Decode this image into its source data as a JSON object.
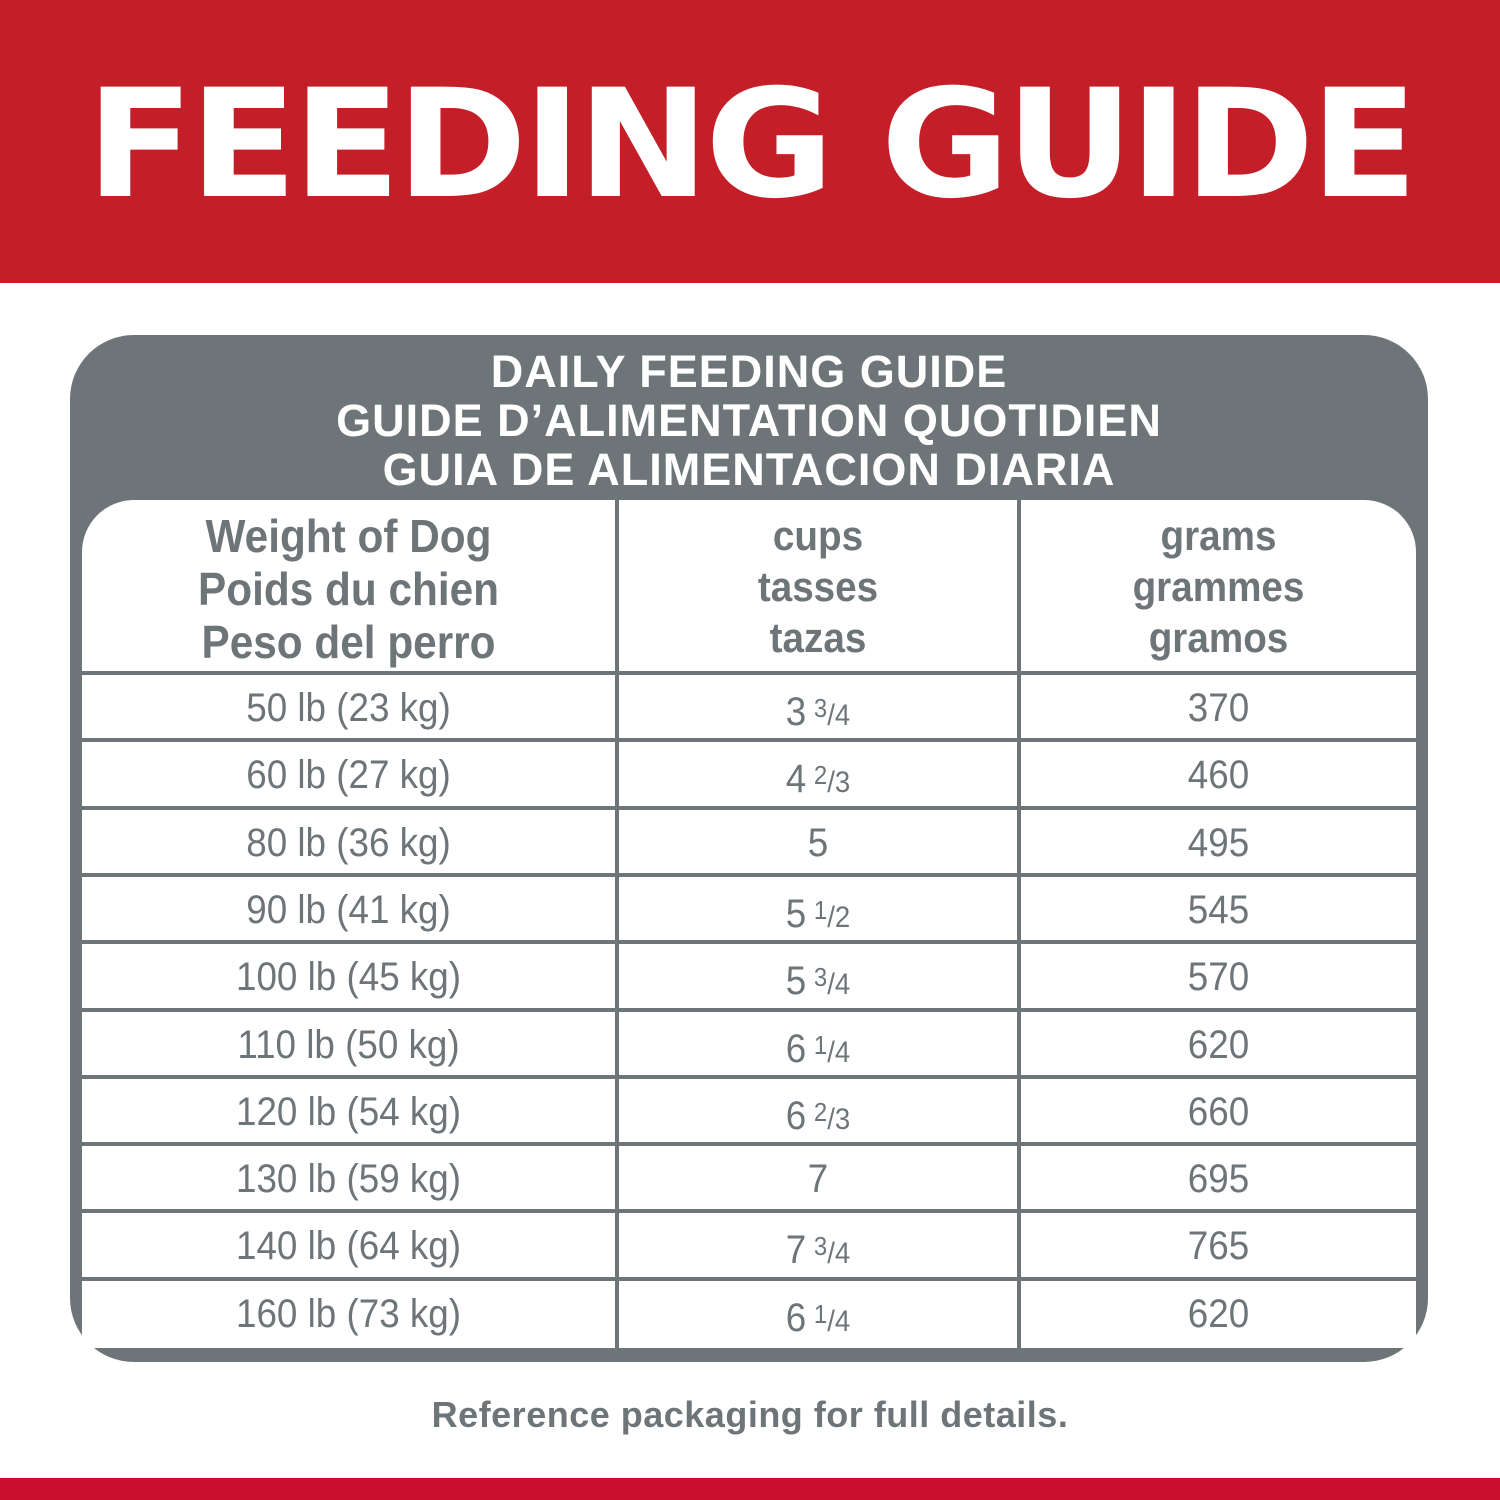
{
  "banner": {
    "title": "FEEDING GUIDE",
    "color": "#c41f28"
  },
  "panel": {
    "title_lines": [
      "DAILY FEEDING GUIDE",
      "GUIDE D’ALIMENTATION QUOTIDIEN",
      "GUIA DE ALIMENTACION DIARIA"
    ],
    "color": "#6e7579"
  },
  "table": {
    "headers": [
      [
        "Weight of Dog",
        "Poids du chien",
        "Peso del perro"
      ],
      [
        "cups",
        "tasses",
        "tazas"
      ],
      [
        "grams",
        "grammes",
        "gramos"
      ]
    ],
    "rows": [
      {
        "weight": "50 lb (23 kg)",
        "cups_whole": "3",
        "cups_num": "3",
        "cups_den": "4",
        "grams": "370"
      },
      {
        "weight": "60 lb (27 kg)",
        "cups_whole": "4",
        "cups_num": "2",
        "cups_den": "3",
        "grams": "460"
      },
      {
        "weight": "80 lb (36 kg)",
        "cups_whole": "5",
        "cups_num": "",
        "cups_den": "",
        "grams": "495"
      },
      {
        "weight": "90 lb (41 kg)",
        "cups_whole": "5",
        "cups_num": "1",
        "cups_den": "2",
        "grams": "545"
      },
      {
        "weight": "100 lb (45 kg)",
        "cups_whole": "5",
        "cups_num": "3",
        "cups_den": "4",
        "grams": "570"
      },
      {
        "weight": "110 lb (50 kg)",
        "cups_whole": "6",
        "cups_num": "1",
        "cups_den": "4",
        "grams": "620"
      },
      {
        "weight": "120 lb (54 kg)",
        "cups_whole": "6",
        "cups_num": "2",
        "cups_den": "3",
        "grams": "660"
      },
      {
        "weight": "130 lb (59 kg)",
        "cups_whole": "7",
        "cups_num": "",
        "cups_den": "",
        "grams": "695"
      },
      {
        "weight": "140 lb (64 kg)",
        "cups_whole": "7",
        "cups_num": "3",
        "cups_den": "4",
        "grams": "765"
      },
      {
        "weight": "160 lb (73 kg)",
        "cups_whole": "6",
        "cups_num": "1",
        "cups_den": "4",
        "grams": "620"
      }
    ]
  },
  "footer": {
    "note": "Reference packaging for full details."
  },
  "bottom_band_color": "#c8102e"
}
